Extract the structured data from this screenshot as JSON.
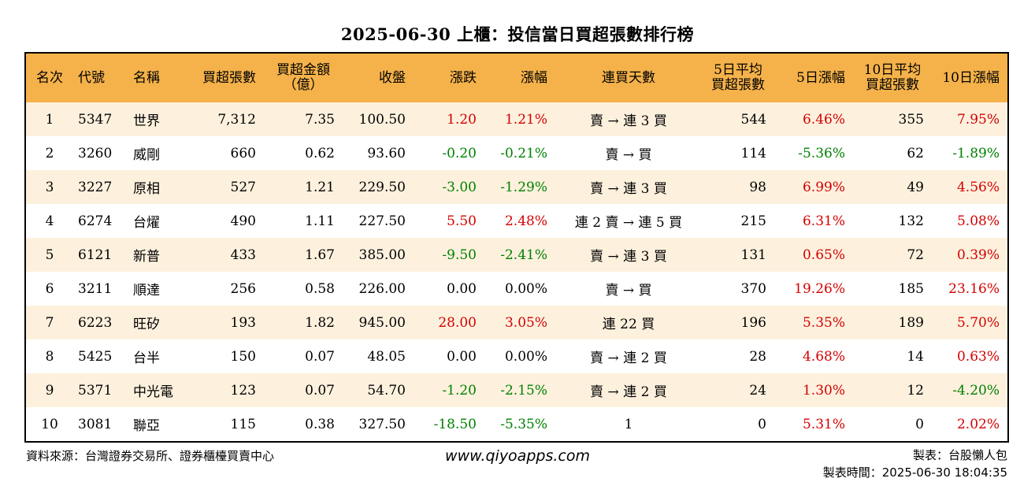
{
  "title": "2025-06-30 上櫃：投信當日買超張數排行榜",
  "headers": [
    "名次",
    "代號",
    "名稱",
    "買超張數",
    "買超金額\n（億）",
    "收盤",
    "漲跌",
    "漲幅",
    "連買天數",
    "5日平均\n買超張數",
    "5日漲幅",
    "10日平均\n買超張數",
    "10日漲幅"
  ],
  "rows": [
    {
      "rank": "1",
      "code": "5347",
      "name": "世界",
      "buy_qty": "7,312",
      "buy_amt": "7.35",
      "close": "100.50",
      "change": "1.20",
      "change_pct": "1.21%",
      "streak": "賣 → 連 3 買",
      "avg5": "544",
      "pct5": "6.46%",
      "avg10": "355",
      "pct10": "7.95%",
      "dir_change": "up",
      "dir_pct5": "up",
      "dir_pct10": "up"
    },
    {
      "rank": "2",
      "code": "3260",
      "name": "威剛",
      "buy_qty": "660",
      "buy_amt": "0.62",
      "close": "93.60",
      "change": "-0.20",
      "change_pct": "-0.21%",
      "streak": "賣 → 買",
      "avg5": "114",
      "pct5": "-5.36%",
      "avg10": "62",
      "pct10": "-1.89%",
      "dir_change": "down",
      "dir_pct5": "down",
      "dir_pct10": "down"
    },
    {
      "rank": "3",
      "code": "3227",
      "name": "原相",
      "buy_qty": "527",
      "buy_amt": "1.21",
      "close": "229.50",
      "change": "-3.00",
      "change_pct": "-1.29%",
      "streak": "賣 → 連 3 買",
      "avg5": "98",
      "pct5": "6.99%",
      "avg10": "49",
      "pct10": "4.56%",
      "dir_change": "down",
      "dir_pct5": "up",
      "dir_pct10": "up"
    },
    {
      "rank": "4",
      "code": "6274",
      "name": "台燿",
      "buy_qty": "490",
      "buy_amt": "1.11",
      "close": "227.50",
      "change": "5.50",
      "change_pct": "2.48%",
      "streak": "連 2 賣 → 連 5 買",
      "avg5": "215",
      "pct5": "6.31%",
      "avg10": "132",
      "pct10": "5.08%",
      "dir_change": "up",
      "dir_pct5": "up",
      "dir_pct10": "up"
    },
    {
      "rank": "5",
      "code": "6121",
      "name": "新普",
      "buy_qty": "433",
      "buy_amt": "1.67",
      "close": "385.00",
      "change": "-9.50",
      "change_pct": "-2.41%",
      "streak": "賣 → 連 3 買",
      "avg5": "131",
      "pct5": "0.65%",
      "avg10": "72",
      "pct10": "0.39%",
      "dir_change": "down",
      "dir_pct5": "up",
      "dir_pct10": "up"
    },
    {
      "rank": "6",
      "code": "3211",
      "name": "順達",
      "buy_qty": "256",
      "buy_amt": "0.58",
      "close": "226.00",
      "change": "0.00",
      "change_pct": "0.00%",
      "streak": "賣 → 買",
      "avg5": "370",
      "pct5": "19.26%",
      "avg10": "185",
      "pct10": "23.16%",
      "dir_change": "flat",
      "dir_pct5": "up",
      "dir_pct10": "up"
    },
    {
      "rank": "7",
      "code": "6223",
      "name": "旺矽",
      "buy_qty": "193",
      "buy_amt": "1.82",
      "close": "945.00",
      "change": "28.00",
      "change_pct": "3.05%",
      "streak": "連 22 買",
      "avg5": "196",
      "pct5": "5.35%",
      "avg10": "189",
      "pct10": "5.70%",
      "dir_change": "up",
      "dir_pct5": "up",
      "dir_pct10": "up"
    },
    {
      "rank": "8",
      "code": "5425",
      "name": "台半",
      "buy_qty": "150",
      "buy_amt": "0.07",
      "close": "48.05",
      "change": "0.00",
      "change_pct": "0.00%",
      "streak": "賣 → 連 2 買",
      "avg5": "28",
      "pct5": "4.68%",
      "avg10": "14",
      "pct10": "0.63%",
      "dir_change": "flat",
      "dir_pct5": "up",
      "dir_pct10": "up"
    },
    {
      "rank": "9",
      "code": "5371",
      "name": "中光電",
      "buy_qty": "123",
      "buy_amt": "0.07",
      "close": "54.70",
      "change": "-1.20",
      "change_pct": "-2.15%",
      "streak": "賣 → 連 2 買",
      "avg5": "24",
      "pct5": "1.30%",
      "avg10": "12",
      "pct10": "-4.20%",
      "dir_change": "down",
      "dir_pct5": "up",
      "dir_pct10": "down"
    },
    {
      "rank": "10",
      "code": "3081",
      "name": "聯亞",
      "buy_qty": "115",
      "buy_amt": "0.38",
      "close": "327.50",
      "change": "-18.50",
      "change_pct": "-5.35%",
      "streak": "1",
      "avg5": "0",
      "pct5": "5.31%",
      "avg10": "0",
      "pct10": "2.02%",
      "dir_change": "down",
      "dir_pct5": "up",
      "dir_pct10": "up"
    }
  ],
  "footer": {
    "source": "資料來源：台灣證券交易所、證券櫃檯買賣中心",
    "website": "www.qiyoapps.com",
    "maker": "製表：台股懶人包",
    "time": "製表時間：2025-06-30 18:04:35"
  },
  "colors": {
    "header_bg": "#f5b24a",
    "odd_row_bg": "#fdf1de",
    "up": "#d40000",
    "down": "#008000"
  }
}
